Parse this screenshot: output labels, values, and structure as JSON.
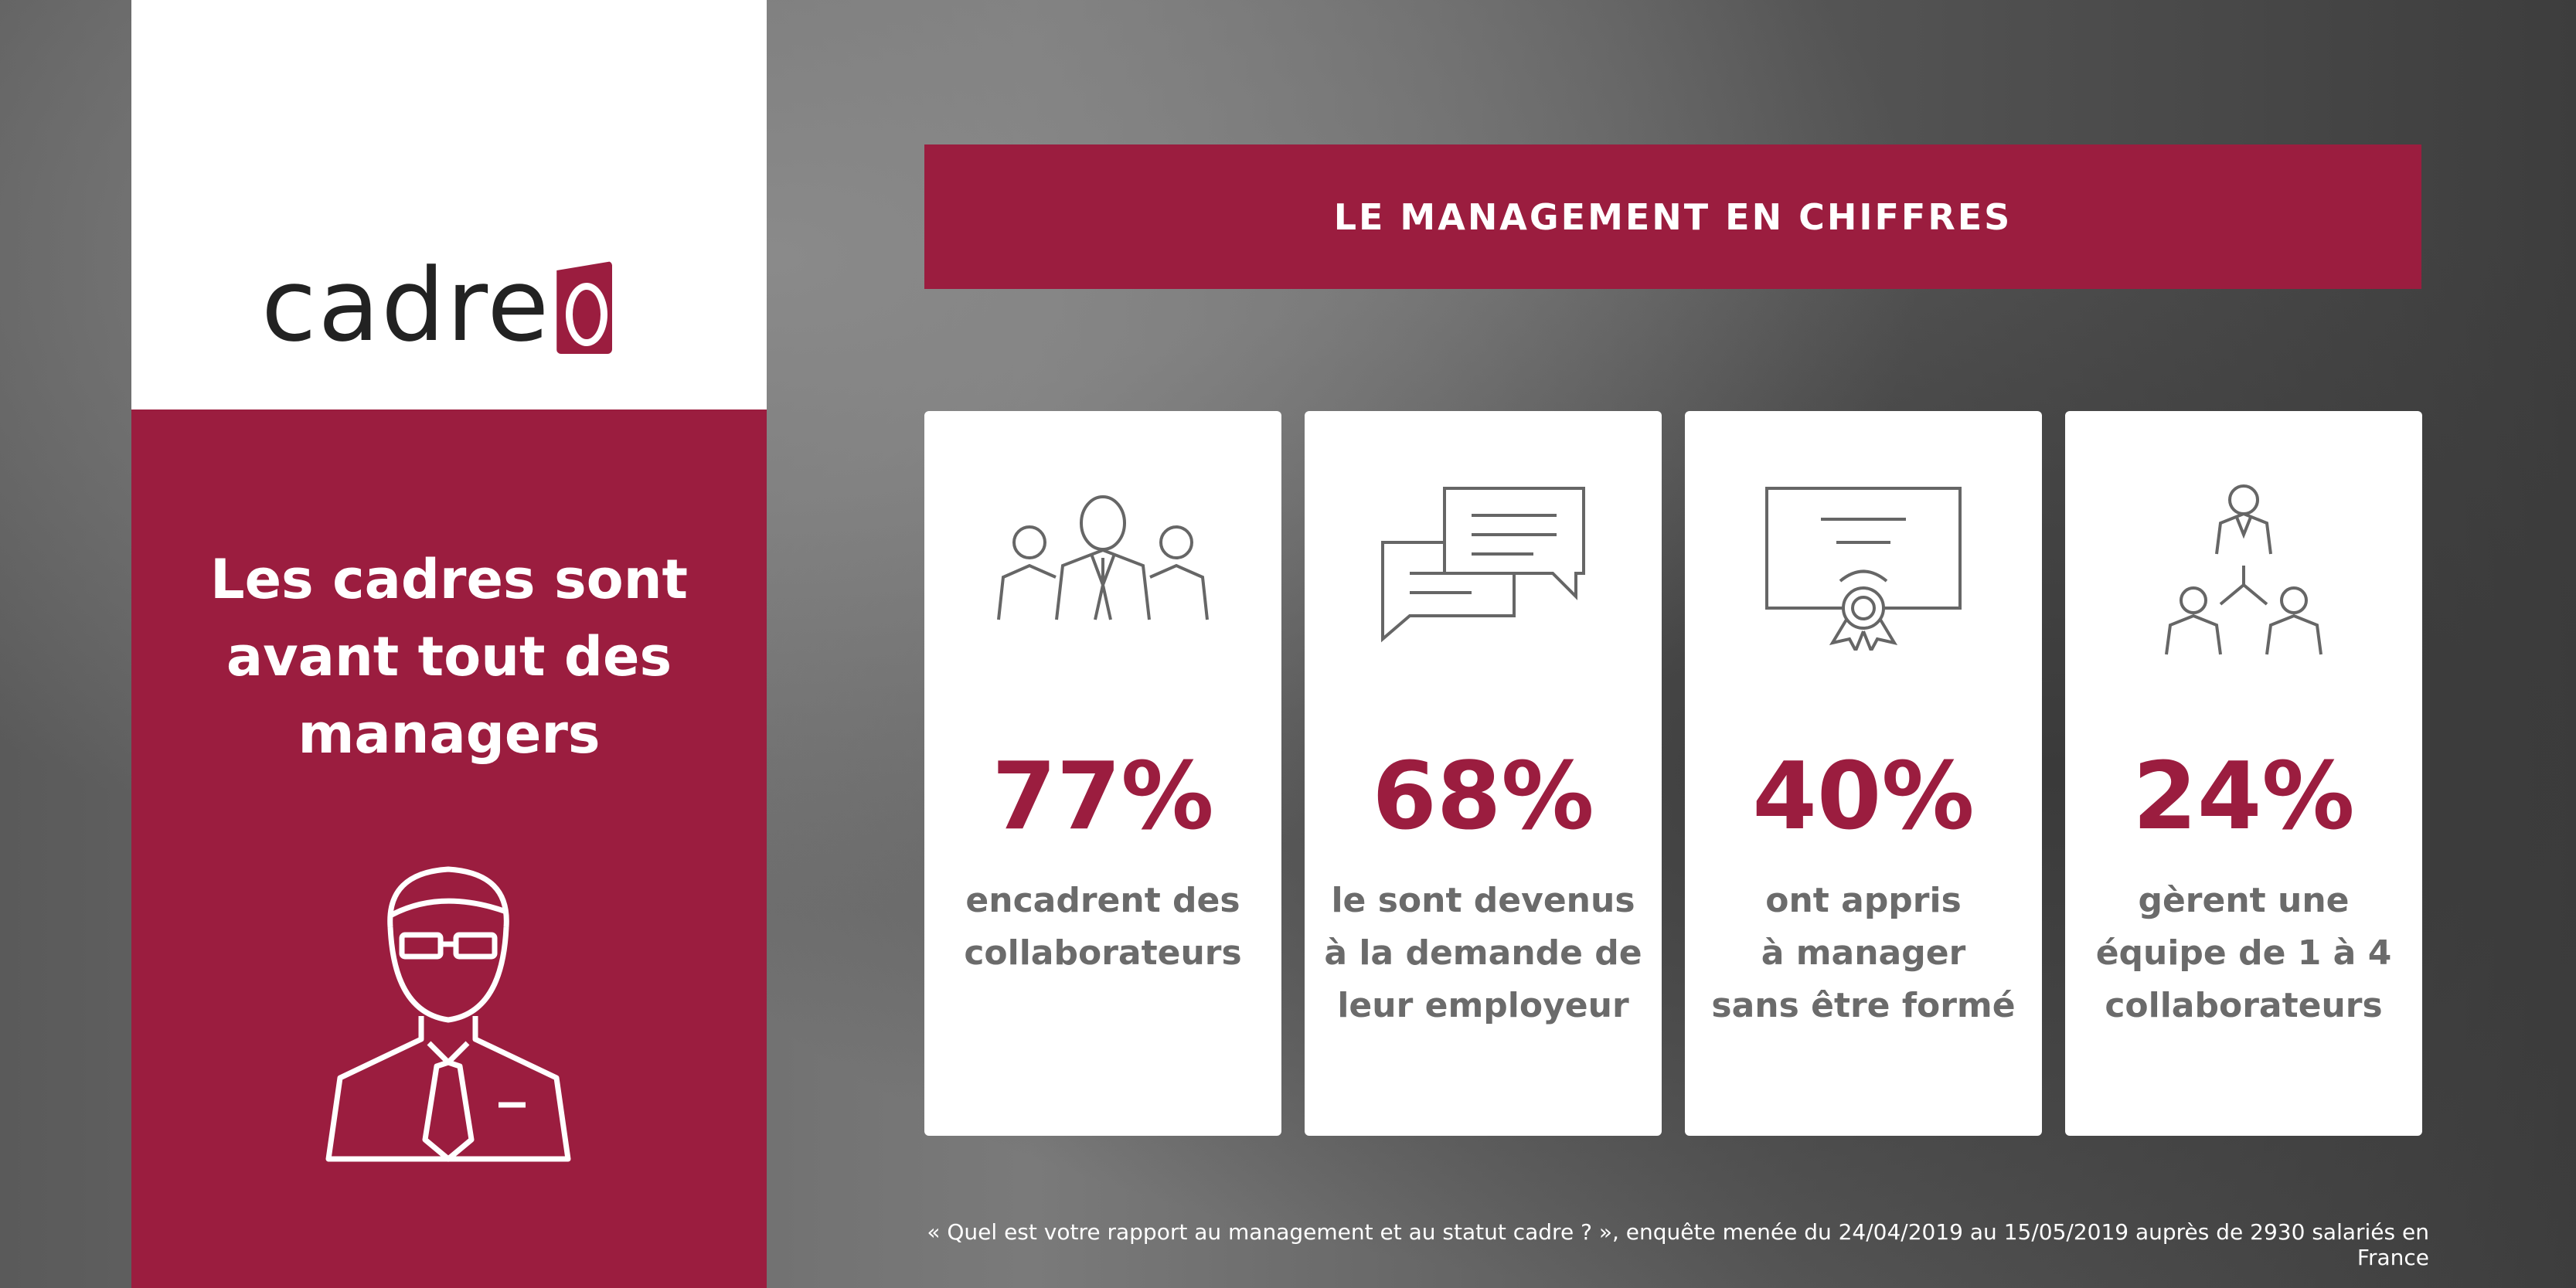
{
  "brand": {
    "logo_text": "cadreo",
    "color": "#9b1d3f"
  },
  "headline": "Les cadres sont avant tout des managers",
  "header_title": "LE MANAGEMENT EN CHIFFRES",
  "stats": [
    {
      "icon": "team-icon",
      "value": "77%",
      "label": "encadrent des\ncollaborateurs"
    },
    {
      "icon": "chat-bubbles-icon",
      "value": "68%",
      "label": "le sont devenus\nà la demande de\nleur employeur"
    },
    {
      "icon": "certificate-icon",
      "value": "40%",
      "label": "ont appris\nà manager\nsans être formé"
    },
    {
      "icon": "hierarchy-icon",
      "value": "24%",
      "label": "gèrent une\néquipe de 1 à 4\ncollaborateurs"
    }
  ],
  "footer": "« Quel est votre rapport au management et au statut cadre ? », enquête menée du 24/04/2019 au 15/05/2019 auprès de 2930 salariés en France"
}
